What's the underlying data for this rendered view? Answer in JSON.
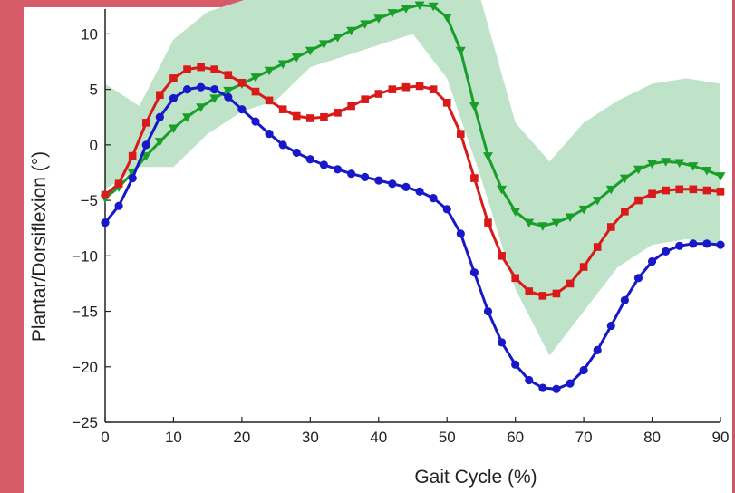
{
  "chart_data": {
    "type": "line",
    "xlabel": "Gait Cycle (%)",
    "ylabel": "Plantar/Dorsiflexion (°)",
    "xlim": [
      0,
      90
    ],
    "ylim": [
      -25,
      12
    ],
    "xticks": [
      0,
      10,
      20,
      30,
      40,
      50,
      60,
      70,
      80,
      90
    ],
    "xtick_labels": [
      "0",
      "10",
      "20",
      "30",
      "40",
      "50",
      "60",
      "70",
      "80",
      "90"
    ],
    "yticks": [
      -25,
      -20,
      -15,
      -10,
      -5,
      0,
      5,
      10
    ],
    "ytick_labels": [
      "−25",
      "−20",
      "−15",
      "−10",
      "−5",
      "0",
      "5",
      "10"
    ],
    "grid": false,
    "band": {
      "color": "#bfe3c8",
      "x": [
        0,
        5,
        10,
        15,
        20,
        25,
        30,
        35,
        40,
        45,
        50,
        55,
        60,
        65,
        70,
        75,
        80,
        85,
        90
      ],
      "upper": [
        5.5,
        3.5,
        9.5,
        12,
        13,
        14,
        15,
        16,
        17,
        18,
        17,
        13,
        2,
        -1.5,
        2,
        4,
        5.5,
        6,
        5.5
      ],
      "lower": [
        -4,
        -2,
        -2,
        1,
        3,
        4,
        7,
        8,
        9,
        10,
        6,
        -3,
        -13,
        -19,
        -15,
        -11,
        -9,
        -8.5,
        -9
      ]
    },
    "series": [
      {
        "color": "#1a9e2a",
        "marker": "triangle-down",
        "x": [
          0,
          2,
          4,
          6,
          8,
          10,
          12,
          14,
          16,
          18,
          20,
          22,
          24,
          26,
          28,
          30,
          32,
          34,
          36,
          38,
          40,
          42,
          44,
          46,
          48,
          50,
          52,
          54,
          56,
          58,
          60,
          62,
          64,
          66,
          68,
          70,
          72,
          74,
          76,
          78,
          80,
          82,
          84,
          86,
          88,
          90
        ],
        "values": [
          -4.8,
          -3.8,
          -2.5,
          -1.0,
          0.3,
          1.5,
          2.5,
          3.4,
          4.2,
          4.9,
          5.5,
          6.1,
          6.7,
          7.3,
          7.9,
          8.5,
          9.1,
          9.7,
          10.3,
          10.9,
          11.4,
          11.9,
          12.3,
          12.6,
          12.5,
          11.5,
          8.5,
          3.5,
          -1.0,
          -4.0,
          -6.0,
          -7.0,
          -7.3,
          -7.0,
          -6.5,
          -5.8,
          -5.0,
          -4.0,
          -3.0,
          -2.2,
          -1.7,
          -1.5,
          -1.6,
          -1.9,
          -2.3,
          -2.8
        ]
      },
      {
        "color": "#d91a1a",
        "marker": "square",
        "x": [
          0,
          2,
          4,
          6,
          8,
          10,
          12,
          14,
          16,
          18,
          20,
          22,
          24,
          26,
          28,
          30,
          32,
          34,
          36,
          38,
          40,
          42,
          44,
          46,
          48,
          50,
          52,
          54,
          56,
          58,
          60,
          62,
          64,
          66,
          68,
          70,
          72,
          74,
          76,
          78,
          80,
          82,
          84,
          86,
          88,
          90
        ],
        "values": [
          -4.5,
          -3.5,
          -1.0,
          2.0,
          4.5,
          6.0,
          6.8,
          7.0,
          6.8,
          6.3,
          5.6,
          4.8,
          4.0,
          3.2,
          2.6,
          2.4,
          2.5,
          2.9,
          3.5,
          4.1,
          4.6,
          5.0,
          5.2,
          5.3,
          5.0,
          3.8,
          1.0,
          -3.0,
          -7.0,
          -10.0,
          -12.0,
          -13.2,
          -13.6,
          -13.4,
          -12.5,
          -11.0,
          -9.2,
          -7.4,
          -6.0,
          -5.0,
          -4.4,
          -4.1,
          -4.0,
          -4.0,
          -4.1,
          -4.2
        ]
      },
      {
        "color": "#1818c8",
        "marker": "circle",
        "x": [
          0,
          2,
          4,
          6,
          8,
          10,
          12,
          14,
          16,
          18,
          20,
          22,
          24,
          26,
          28,
          30,
          32,
          34,
          36,
          38,
          40,
          42,
          44,
          46,
          48,
          50,
          52,
          54,
          56,
          58,
          60,
          62,
          64,
          66,
          68,
          70,
          72,
          74,
          76,
          78,
          80,
          82,
          84,
          86,
          88,
          90
        ],
        "values": [
          -7.0,
          -5.5,
          -3.0,
          0.0,
          2.5,
          4.2,
          5.0,
          5.2,
          5.0,
          4.3,
          3.2,
          2.1,
          1.0,
          0.0,
          -0.7,
          -1.3,
          -1.8,
          -2.2,
          -2.6,
          -2.9,
          -3.2,
          -3.5,
          -3.8,
          -4.2,
          -4.8,
          -5.8,
          -8.0,
          -11.5,
          -15.0,
          -17.8,
          -19.8,
          -21.2,
          -21.9,
          -22.0,
          -21.5,
          -20.3,
          -18.5,
          -16.3,
          -14.0,
          -12.0,
          -10.5,
          -9.6,
          -9.1,
          -8.9,
          -8.9,
          -9.0
        ]
      }
    ]
  }
}
